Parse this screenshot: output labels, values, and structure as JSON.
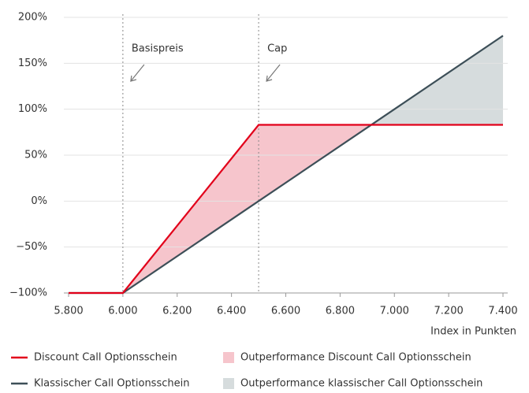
{
  "chart_data": {
    "type": "line",
    "x_label": "Index in Punkten",
    "x": [
      5800,
      6000,
      6500,
      7400
    ],
    "series": [
      {
        "name": "Discount Call Optionsschein",
        "color": "#e2001a",
        "values": [
          -100,
          -100,
          83,
          83
        ]
      },
      {
        "name": "Klassischer Call Optionsschein",
        "color": "#3d4f58",
        "values": [
          -100,
          -100,
          0,
          180
        ]
      }
    ],
    "areas": [
      {
        "name": "Outperformance Discount Call Optionsschein",
        "color": "#f6c5cc"
      },
      {
        "name": "Outperformance klassischer Call Optionsschein",
        "color": "#d6dcdd"
      }
    ],
    "annotations": [
      {
        "text": "Basispreis",
        "x": 6000
      },
      {
        "text": "Cap",
        "x": 6500
      }
    ],
    "xlim": [
      5800,
      7400
    ],
    "xticks": [
      {
        "value": 5800,
        "label": "5.800"
      },
      {
        "value": 6000,
        "label": "6.000"
      },
      {
        "value": 6200,
        "label": "6.200"
      },
      {
        "value": 6400,
        "label": "6.400"
      },
      {
        "value": 6600,
        "label": "6.600"
      },
      {
        "value": 6800,
        "label": "6.800"
      },
      {
        "value": 7000,
        "label": "7.000"
      },
      {
        "value": 7200,
        "label": "7.200"
      },
      {
        "value": 7400,
        "label": "7.400"
      }
    ],
    "ylim": [
      -100,
      200
    ],
    "yticks": [
      {
        "value": -100,
        "label": "−100%"
      },
      {
        "value": -50,
        "label": "−50%"
      },
      {
        "value": 0,
        "label": "0%"
      },
      {
        "value": 50,
        "label": "50%"
      },
      {
        "value": 100,
        "label": "100%"
      },
      {
        "value": 150,
        "label": "150%"
      },
      {
        "value": 200,
        "label": "200%"
      }
    ],
    "grid": true
  }
}
